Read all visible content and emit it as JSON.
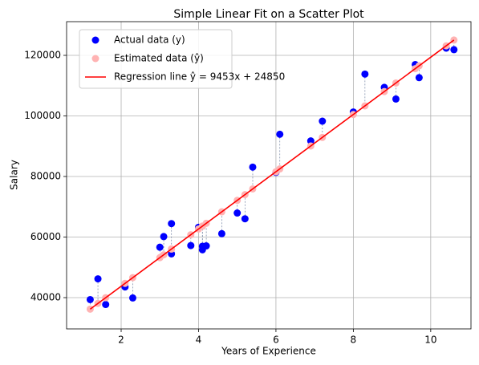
{
  "chart_data": {
    "type": "scatter",
    "title": "Simple Linear Fit on a Scatter Plot",
    "x_label": "Years of Experience",
    "y_label": "Salary",
    "x": [
      1.2,
      1.4,
      1.6,
      2.1,
      2.3,
      3.0,
      3.1,
      3.3,
      3.3,
      3.8,
      4.0,
      4.1,
      4.1,
      4.2,
      4.6,
      5.0,
      5.2,
      5.4,
      6.0,
      6.1,
      6.9,
      7.2,
      8.0,
      8.3,
      8.8,
      9.1,
      9.6,
      9.7,
      10.4,
      10.6
    ],
    "series": [
      {
        "name": "Actual data (y)",
        "color": "#0000ff",
        "kind": "points",
        "values": [
          39344,
          46206,
          37732,
          43526,
          39892,
          56643,
          60151,
          54446,
          64446,
          57190,
          63219,
          55795,
          56958,
          57082,
          61112,
          67939,
          66030,
          83089,
          81364,
          93941,
          91739,
          98274,
          101303,
          113813,
          109432,
          105583,
          116970,
          112636,
          122392,
          121873
        ]
      },
      {
        "name": "Estimated data (ŷ)",
        "color": "#ffb3b3",
        "kind": "points",
        "values": [
          36194,
          38084,
          39975,
          44701,
          46592,
          53209,
          54154,
          56045,
          56045,
          60771,
          62662,
          63607,
          63607,
          64553,
          68334,
          72115,
          74006,
          75896,
          81568,
          82513,
          90076,
          92912,
          100474,
          103310,
          108036,
          110872,
          115599,
          116544,
          123161,
          125052
        ]
      },
      {
        "name": "Regression line ŷ = 9453x + 24850",
        "color": "#ff0000",
        "kind": "line",
        "x": [
          1.2,
          10.6
        ],
        "values": [
          36194,
          125052
        ]
      }
    ],
    "residual_color": "#7080a0",
    "xlim": [
      0.59,
      11.04
    ],
    "ylim": [
      29669,
      131126
    ],
    "xticks": [
      2,
      4,
      6,
      8,
      10
    ],
    "yticks": [
      40000,
      60000,
      80000,
      100000,
      120000
    ],
    "grid": true,
    "legend": "upper left"
  }
}
